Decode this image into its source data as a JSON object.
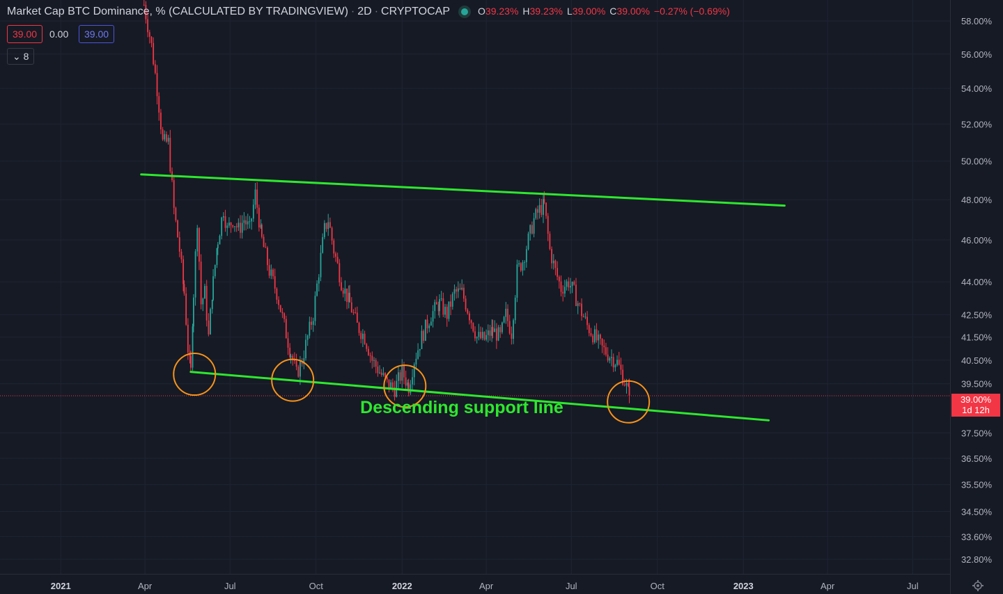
{
  "header": {
    "title": "Market Cap BTC Dominance, % (CALCULATED BY TRADINGVIEW)",
    "interval": "2D",
    "exchange": "CRYPTOCAP",
    "ohlc": {
      "open_label": "O",
      "open": "39.23%",
      "high_label": "H",
      "high": "39.23%",
      "low_label": "L",
      "low": "39.00%",
      "close_label": "C",
      "close": "39.00%",
      "change": "−0.27% (−0.69%)"
    }
  },
  "indicator_values": {
    "sell": "39.00",
    "spread": "0.00",
    "buy": "39.00"
  },
  "collapse": {
    "icon": "chevron-down-icon",
    "count": "8"
  },
  "price_tag": {
    "value": "39.00%",
    "countdown": "1d 12h"
  },
  "annotation": {
    "text": "Descending support line"
  },
  "colors": {
    "background": "#161a25",
    "up": "#26a69a",
    "down": "#f23645",
    "trendline": "#2ee82e",
    "circle": "#f7931a",
    "grid": "#1f2433",
    "text": "#d1d4dc"
  },
  "chart_data": {
    "type": "candlestick",
    "y_scale": "log",
    "y_ticks": [
      "58.00%",
      "56.00%",
      "54.00%",
      "52.00%",
      "50.00%",
      "48.00%",
      "46.00%",
      "44.00%",
      "42.50%",
      "41.50%",
      "40.50%",
      "39.50%",
      "37.50%",
      "36.50%",
      "35.50%",
      "34.50%",
      "33.60%",
      "32.80%"
    ],
    "x_ticks": [
      "2021",
      "Apr",
      "Jul",
      "Oct",
      "2022",
      "Apr",
      "Jul",
      "Oct",
      "2023",
      "Apr",
      "Jul"
    ],
    "x_range": [
      "2020-10-28",
      "2023-08-10"
    ],
    "y_range": [
      32.3,
      59.3
    ],
    "series": [
      {
        "name": "BTC Dominance",
        "path": [
          [
            "2021-03-31",
            59.0
          ],
          [
            "2021-04-08",
            56.5
          ],
          [
            "2021-04-14",
            54.0
          ],
          [
            "2021-04-20",
            51.0
          ],
          [
            "2021-04-26",
            51.0
          ],
          [
            "2021-05-02",
            47.5
          ],
          [
            "2021-05-08",
            45.5
          ],
          [
            "2021-05-13",
            43.5
          ],
          [
            "2021-05-17",
            41.0
          ],
          [
            "2021-05-20",
            40.0
          ],
          [
            "2021-05-23",
            43.5
          ],
          [
            "2021-05-27",
            47.0
          ],
          [
            "2021-05-31",
            43.0
          ],
          [
            "2021-06-04",
            43.5
          ],
          [
            "2021-06-08",
            41.5
          ],
          [
            "2021-06-13",
            44.0
          ],
          [
            "2021-06-18",
            46.0
          ],
          [
            "2021-06-24",
            47.5
          ],
          [
            "2021-06-28",
            46.5
          ],
          [
            "2021-07-04",
            47.0
          ],
          [
            "2021-07-10",
            46.5
          ],
          [
            "2021-07-16",
            47.0
          ],
          [
            "2021-07-22",
            46.5
          ],
          [
            "2021-07-28",
            48.3
          ],
          [
            "2021-08-04",
            46.0
          ],
          [
            "2021-08-12",
            44.5
          ],
          [
            "2021-08-20",
            43.5
          ],
          [
            "2021-08-28",
            42.0
          ],
          [
            "2021-09-04",
            40.8
          ],
          [
            "2021-09-10",
            39.9
          ],
          [
            "2021-09-16",
            40.5
          ],
          [
            "2021-09-22",
            41.5
          ],
          [
            "2021-09-28",
            42.5
          ],
          [
            "2021-10-04",
            44.5
          ],
          [
            "2021-10-10",
            46.5
          ],
          [
            "2021-10-14",
            47.0
          ],
          [
            "2021-10-20",
            45.5
          ],
          [
            "2021-10-28",
            44.0
          ],
          [
            "2021-11-06",
            43.0
          ],
          [
            "2021-11-14",
            42.0
          ],
          [
            "2021-11-22",
            41.5
          ],
          [
            "2021-11-30",
            40.5
          ],
          [
            "2021-12-08",
            40.0
          ],
          [
            "2021-12-16",
            39.5
          ],
          [
            "2021-12-24",
            39.3
          ],
          [
            "2022-01-01",
            40.0
          ],
          [
            "2022-01-08",
            39.4
          ],
          [
            "2022-01-14",
            40.5
          ],
          [
            "2022-01-22",
            41.5
          ],
          [
            "2022-02-01",
            42.5
          ],
          [
            "2022-02-10",
            43.0
          ],
          [
            "2022-02-18",
            42.5
          ],
          [
            "2022-02-26",
            43.5
          ],
          [
            "2022-03-06",
            43.5
          ],
          [
            "2022-03-14",
            42.5
          ],
          [
            "2022-03-22",
            41.5
          ],
          [
            "2022-03-30",
            41.4
          ],
          [
            "2022-04-08",
            41.8
          ],
          [
            "2022-04-16",
            41.5
          ],
          [
            "2022-04-22",
            42.5
          ],
          [
            "2022-04-28",
            41.7
          ],
          [
            "2022-05-04",
            44.5
          ],
          [
            "2022-05-10",
            45.0
          ],
          [
            "2022-05-16",
            46.0
          ],
          [
            "2022-05-22",
            47.0
          ],
          [
            "2022-05-28",
            47.5
          ],
          [
            "2022-06-02",
            47.7
          ],
          [
            "2022-06-08",
            45.5
          ],
          [
            "2022-06-14",
            44.5
          ],
          [
            "2022-06-20",
            43.7
          ],
          [
            "2022-06-28",
            44.0
          ],
          [
            "2022-07-04",
            43.5
          ],
          [
            "2022-07-10",
            42.8
          ],
          [
            "2022-07-18",
            42.0
          ],
          [
            "2022-07-26",
            41.5
          ],
          [
            "2022-08-03",
            41.0
          ],
          [
            "2022-08-11",
            40.7
          ],
          [
            "2022-08-19",
            40.4
          ],
          [
            "2022-08-27",
            39.6
          ],
          [
            "2022-09-01",
            39.0
          ]
        ]
      }
    ],
    "trendlines": [
      {
        "name": "resistance",
        "start": [
          "2021-03-28",
          49.3
        ],
        "end": [
          "2023-02-14",
          47.7
        ]
      },
      {
        "name": "support",
        "start": [
          "2021-05-20",
          40.0
        ],
        "end": [
          "2023-01-28",
          38.0
        ]
      }
    ],
    "circled_points": [
      [
        "2021-05-24",
        39.9
      ],
      [
        "2021-09-06",
        39.65
      ],
      [
        "2022-01-04",
        39.4
      ],
      [
        "2022-08-31",
        38.75
      ]
    ],
    "last_price": 39.0
  }
}
